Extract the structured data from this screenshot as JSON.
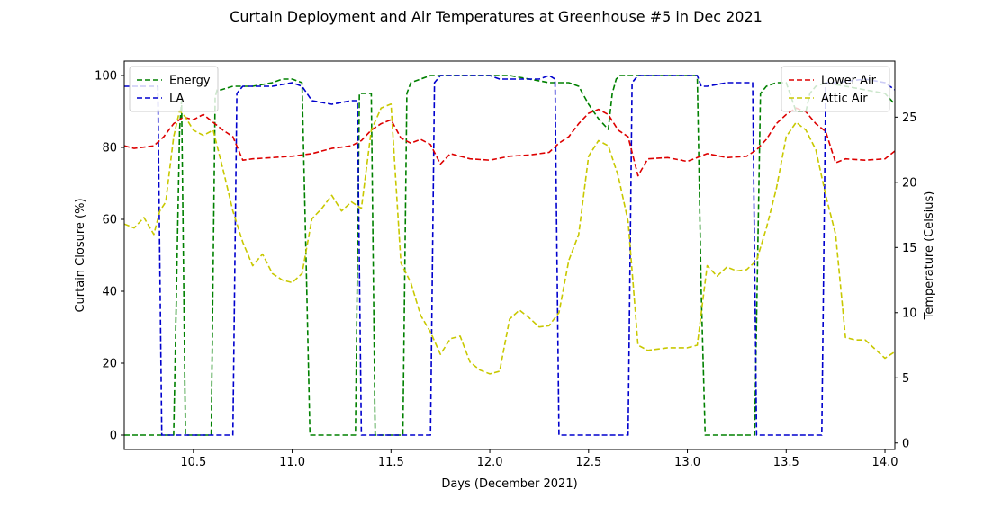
{
  "chart_data": {
    "type": "line",
    "title": "Curtain Deployment and Air Temperatures at Greenhouse #5 in Dec 2021",
    "xlabel": "Days (December 2021)",
    "ylabel_left": "Curtain Closure (%)",
    "ylabel_right": "Temperature (Celsius)",
    "xlim": [
      10.15,
      14.05
    ],
    "ylim_left": [
      -4,
      104
    ],
    "ylim_right": [
      -0.5,
      29.3
    ],
    "x_ticks": [
      10.5,
      11.0,
      11.5,
      12.0,
      12.5,
      13.0,
      13.5,
      14.0
    ],
    "x_tick_labels": [
      "10.5",
      "11.0",
      "11.5",
      "12.0",
      "12.5",
      "13.0",
      "13.5",
      "14.0"
    ],
    "y_left_ticks": [
      0,
      20,
      40,
      60,
      80,
      100
    ],
    "y_left_tick_labels": [
      "0",
      "20",
      "40",
      "60",
      "80",
      "100"
    ],
    "y_right_ticks": [
      0,
      5,
      10,
      15,
      20,
      25
    ],
    "y_right_tick_labels": [
      "0",
      "5",
      "10",
      "15",
      "20",
      "25"
    ],
    "grid": false,
    "legend_left": {
      "placement": "top-left",
      "entries": [
        "Energy",
        "LA"
      ]
    },
    "legend_right": {
      "placement": "top-right",
      "entries": [
        "Lower Air",
        "Attic Air"
      ]
    },
    "series": [
      {
        "name": "Energy",
        "axis": "left",
        "color": "#008000",
        "dash": "dashed",
        "x": [
          10.15,
          10.3,
          10.32,
          10.38,
          10.4,
          10.43,
          10.44,
          10.46,
          10.5,
          10.55,
          10.57,
          10.59,
          10.61,
          10.62,
          10.64,
          10.7,
          10.8,
          10.9,
          10.95,
          11.0,
          11.05,
          11.07,
          11.09,
          11.3,
          11.32,
          11.34,
          11.4,
          11.42,
          11.56,
          11.58,
          11.6,
          11.65,
          11.7,
          11.8,
          11.9,
          12.0,
          12.1,
          12.2,
          12.3,
          12.31,
          12.33,
          12.4,
          12.45,
          12.5,
          12.55,
          12.6,
          12.62,
          12.64,
          12.66,
          12.7,
          12.8,
          12.9,
          13.0,
          13.05,
          13.07,
          13.09,
          13.32,
          13.34,
          13.37,
          13.4,
          13.45,
          13.5,
          13.55,
          13.6,
          13.62,
          13.65,
          13.7,
          13.8,
          13.9,
          14.0,
          14.05
        ],
        "y": [
          0,
          0,
          0,
          0,
          0,
          85,
          93,
          0,
          0,
          0,
          0,
          0,
          94,
          96,
          96,
          97,
          97,
          98,
          99,
          99,
          98,
          50,
          0,
          0,
          0,
          95,
          95,
          0,
          0,
          95,
          98,
          99,
          100,
          100,
          100,
          100,
          100,
          99,
          98,
          98,
          98,
          98,
          97,
          92,
          88,
          85,
          95,
          99,
          100,
          100,
          100,
          100,
          100,
          100,
          40,
          0,
          0,
          0,
          95,
          97,
          98,
          98,
          90,
          90,
          95,
          97,
          98,
          97,
          96,
          95,
          92
        ]
      },
      {
        "name": "LA",
        "axis": "left",
        "color": "#0000cd",
        "dash": "dashed",
        "x": [
          10.15,
          10.3,
          10.32,
          10.34,
          10.7,
          10.72,
          10.75,
          10.9,
          11.0,
          11.05,
          11.1,
          11.2,
          11.3,
          11.33,
          11.35,
          11.7,
          11.72,
          11.75,
          12.0,
          12.05,
          12.1,
          12.25,
          12.3,
          12.33,
          12.35,
          12.7,
          12.72,
          12.75,
          13.05,
          13.07,
          13.1,
          13.2,
          13.3,
          13.33,
          13.35,
          13.68,
          13.7,
          13.75,
          13.9,
          14.0,
          14.05
        ],
        "y": [
          97,
          97,
          97,
          0,
          0,
          95,
          97,
          97,
          98,
          97,
          93,
          92,
          93,
          93,
          0,
          0,
          98,
          100,
          100,
          99,
          99,
          99,
          100,
          99,
          0,
          0,
          98,
          100,
          100,
          97,
          97,
          98,
          98,
          98,
          0,
          0,
          98,
          98,
          99,
          98,
          96
        ]
      },
      {
        "name": "Lower Air",
        "axis": "right",
        "color": "#dd0000",
        "dash": "dashed",
        "x": [
          10.15,
          10.2,
          10.25,
          10.3,
          10.35,
          10.4,
          10.45,
          10.5,
          10.55,
          10.6,
          10.65,
          10.7,
          10.75,
          10.8,
          10.9,
          11.0,
          11.1,
          11.2,
          11.3,
          11.35,
          11.4,
          11.45,
          11.5,
          11.55,
          11.6,
          11.65,
          11.7,
          11.75,
          11.8,
          11.9,
          12.0,
          12.1,
          12.2,
          12.3,
          12.35,
          12.4,
          12.45,
          12.5,
          12.55,
          12.6,
          12.65,
          12.7,
          12.75,
          12.8,
          12.9,
          13.0,
          13.1,
          13.2,
          13.3,
          13.35,
          13.4,
          13.45,
          13.5,
          13.55,
          13.6,
          13.65,
          13.7,
          13.75,
          13.8,
          13.9,
          14.0,
          14.05
        ],
        "y": [
          22.8,
          22.6,
          22.7,
          22.8,
          23.5,
          24.5,
          25.0,
          24.8,
          25.2,
          24.6,
          24.0,
          23.5,
          21.7,
          21.8,
          21.9,
          22.0,
          22.2,
          22.6,
          22.8,
          23.2,
          24.0,
          24.5,
          24.8,
          23.4,
          23.0,
          23.3,
          22.9,
          21.4,
          22.2,
          21.8,
          21.7,
          22.0,
          22.1,
          22.3,
          23.0,
          23.5,
          24.5,
          25.3,
          25.6,
          25.2,
          24.0,
          23.5,
          20.5,
          21.8,
          21.9,
          21.6,
          22.2,
          21.9,
          22.0,
          22.5,
          23.3,
          24.5,
          25.2,
          25.7,
          25.4,
          24.5,
          23.9,
          21.5,
          21.8,
          21.7,
          21.8,
          22.4
        ]
      },
      {
        "name": "Attic Air",
        "axis": "right",
        "color": "#c8c800",
        "dash": "dashed",
        "x": [
          10.15,
          10.2,
          10.25,
          10.3,
          10.33,
          10.36,
          10.4,
          10.43,
          10.46,
          10.5,
          10.55,
          10.6,
          10.65,
          10.7,
          10.75,
          10.8,
          10.85,
          10.9,
          10.95,
          11.0,
          11.05,
          11.1,
          11.15,
          11.2,
          11.25,
          11.3,
          11.35,
          11.4,
          11.45,
          11.5,
          11.55,
          11.6,
          11.65,
          11.7,
          11.75,
          11.8,
          11.85,
          11.9,
          11.95,
          12.0,
          12.05,
          12.1,
          12.15,
          12.2,
          12.25,
          12.3,
          12.35,
          12.4,
          12.45,
          12.5,
          12.55,
          12.6,
          12.65,
          12.7,
          12.75,
          12.8,
          12.9,
          13.0,
          13.05,
          13.1,
          13.15,
          13.2,
          13.25,
          13.3,
          13.35,
          13.4,
          13.45,
          13.5,
          13.55,
          13.6,
          13.65,
          13.7,
          13.75,
          13.8,
          13.85,
          13.9,
          14.0,
          14.05
        ],
        "y": [
          16.8,
          16.5,
          17.3,
          16.0,
          17.8,
          18.5,
          23.5,
          25.5,
          25.0,
          24.0,
          23.6,
          24.0,
          21.0,
          17.8,
          15.4,
          13.6,
          14.5,
          13.0,
          12.5,
          12.3,
          13.0,
          17.2,
          18.0,
          19.0,
          17.8,
          18.5,
          18.0,
          24.0,
          25.7,
          26.0,
          13.8,
          12.3,
          9.8,
          8.5,
          6.8,
          8.0,
          8.2,
          6.2,
          5.6,
          5.3,
          5.5,
          9.5,
          10.2,
          9.6,
          8.9,
          9.0,
          10.0,
          14.0,
          16.0,
          22.0,
          23.2,
          22.8,
          20.5,
          17.0,
          7.5,
          7.1,
          7.3,
          7.3,
          7.5,
          13.6,
          12.8,
          13.5,
          13.2,
          13.3,
          14.0,
          16.5,
          19.5,
          23.5,
          24.6,
          24.0,
          22.5,
          19.0,
          16.0,
          8.1,
          7.9,
          7.9,
          6.5,
          7.0
        ]
      }
    ]
  }
}
